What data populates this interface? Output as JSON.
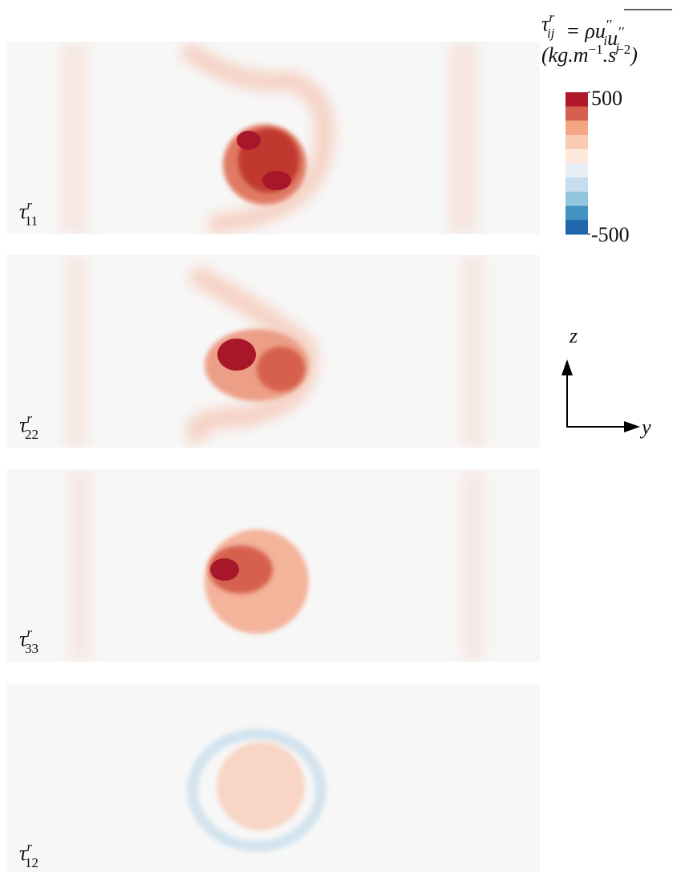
{
  "figure": {
    "panels": [
      {
        "symbol": "τ",
        "sup": "r",
        "sub": "11"
      },
      {
        "symbol": "τ",
        "sup": "r",
        "sub": "22"
      },
      {
        "symbol": "τ",
        "sup": "r",
        "sub": "33"
      },
      {
        "symbol": "τ",
        "sup": "r",
        "sub": "12"
      }
    ],
    "colorbar": {
      "title": {
        "symbol": "τ",
        "sup": "r",
        "sub": "ij",
        "rhs": "= ρ",
        "terms": [
          {
            "symbol": "u",
            "sup": "′′",
            "sub": "i"
          },
          {
            "symbol": "u",
            "sup": "′′",
            "sub": "j"
          }
        ]
      },
      "units": [
        {
          "text": "(kg.m"
        },
        {
          "sup": "−1"
        },
        {
          "text": ".s"
        },
        {
          "sup": "−2"
        },
        {
          "text": ")"
        }
      ],
      "clim": [
        -500,
        500
      ],
      "ticks": [
        500,
        -500
      ],
      "colors": [
        "#b2182b",
        "#d6604d",
        "#f4a582",
        "#f9cbb3",
        "#fde8dc",
        "#e8f0f6",
        "#c7dcec",
        "#92c5de",
        "#4393c3",
        "#2166ac"
      ]
    },
    "axes_indicator": {
      "vertical": "z",
      "horizontal": "y"
    }
  }
}
